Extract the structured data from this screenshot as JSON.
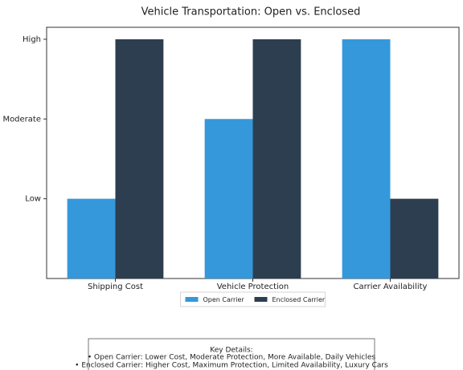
{
  "chart_data": {
    "type": "bar",
    "title": "Vehicle Transportation: Open vs. Enclosed",
    "categories": [
      "Shipping Cost",
      "Vehicle Protection",
      "Carrier Availability"
    ],
    "series": [
      {
        "name": "Open Carrier",
        "color": "#3498db",
        "values": [
          1,
          2,
          3
        ]
      },
      {
        "name": "Enclosed Carrier",
        "color": "#2c3e50",
        "values": [
          3,
          3,
          1
        ]
      }
    ],
    "ylim": [
      0,
      3.15
    ],
    "yticks": [
      {
        "value": 1,
        "label": "Low"
      },
      {
        "value": 2,
        "label": "Moderate"
      },
      {
        "value": 3,
        "label": "High"
      }
    ],
    "legend": "lower center",
    "notes": {
      "title": "Key Details:",
      "lines": [
        "• Open Carrier: Lower Cost, Moderate Protection, More Available, Daily Vehicles",
        "• Enclosed Carrier: Higher Cost, Maximum Protection, Limited Availability, Luxury Cars"
      ]
    }
  }
}
